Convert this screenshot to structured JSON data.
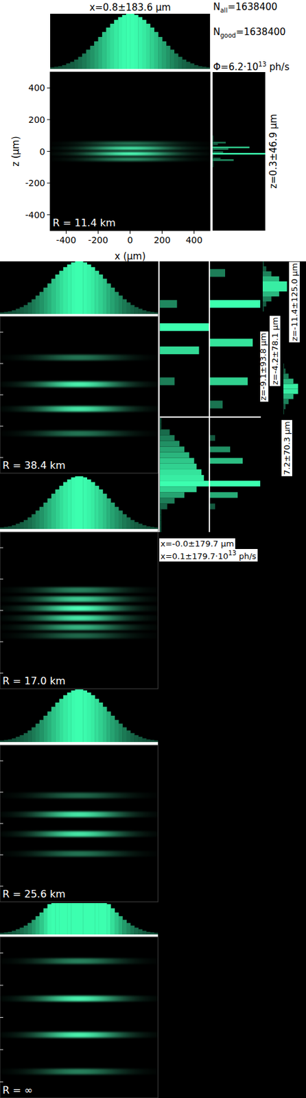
{
  "chart_data": [
    {
      "type": "image",
      "title": "x=0.8±183.6 µm",
      "annotation": "R = 11.4 km",
      "x_label": "x (µm)",
      "y_label": "z (µm)",
      "xlim": [
        -500,
        500
      ],
      "ylim": [
        -500,
        500
      ],
      "xticks": [
        -400,
        -200,
        0,
        200,
        400
      ],
      "yticks": [
        -400,
        -200,
        0,
        200,
        400
      ],
      "x_hist": {
        "bins": [
          -500,
          -475,
          -450,
          -425,
          -400,
          -375,
          -350,
          -325,
          -300,
          -275,
          -250,
          -225,
          -200,
          -175,
          -150,
          -125,
          -100,
          -75,
          -50,
          -25,
          0,
          25,
          50,
          75,
          100,
          125,
          150,
          175,
          200,
          225,
          250,
          275,
          300,
          325,
          350,
          375,
          400,
          425,
          450,
          475,
          500
        ],
        "counts": [
          3,
          4,
          5,
          7,
          10,
          13,
          17,
          22,
          28,
          35,
          42,
          50,
          58,
          67,
          75,
          82,
          89,
          94,
          98,
          100,
          100,
          98,
          94,
          89,
          82,
          75,
          67,
          58,
          50,
          42,
          35,
          28,
          22,
          17,
          13,
          10,
          7,
          5,
          4,
          3
        ],
        "ylim": [
          0,
          100
        ]
      },
      "z_hist": {
        "title": "z=0.3±46.9 µm",
        "bins": [
          -100,
          -90,
          -80,
          -70,
          -60,
          -50,
          -40,
          -30,
          -20,
          -10,
          0,
          10,
          20,
          30,
          40,
          50,
          60,
          70,
          80,
          90,
          100
        ],
        "counts": [
          2,
          2,
          2,
          2,
          40,
          15,
          2,
          2,
          100,
          20,
          2,
          30,
          70,
          2,
          10,
          25,
          2,
          2,
          2,
          2
        ],
        "xlim": [
          0,
          100
        ]
      },
      "fringes": {
        "z": [
          50,
          20,
          -15,
          -50
        ],
        "intensity": [
          0.45,
          0.9,
          1,
          0.55
        ]
      },
      "stats": [
        {
          "text": "N",
          "subscript": "all",
          "value": "=1638400"
        },
        {
          "text": "N",
          "subscript": "good",
          "value": "=1638400"
        },
        {
          "text": "Φ=6.2·10",
          "superscript": "13",
          "value": " ph/s"
        }
      ]
    },
    {
      "type": "image",
      "annotation": "R = 38.4 km",
      "xlim": [
        -500,
        500
      ],
      "ylim": [
        -500,
        500
      ],
      "yticks": [
        -400,
        -200,
        0,
        200,
        400
      ],
      "tick_labels": false,
      "x_hist": {
        "bins": [
          -500,
          -475,
          -450,
          -425,
          -400,
          -375,
          -350,
          -325,
          -300,
          -275,
          -250,
          -225,
          -200,
          -175,
          -150,
          -125,
          -100,
          -75,
          -50,
          -25,
          0,
          25,
          50,
          75,
          100,
          125,
          150,
          175,
          200,
          225,
          250,
          275,
          300,
          325,
          350,
          375,
          400,
          425,
          450,
          475,
          500
        ],
        "counts": [
          3,
          4,
          5,
          7,
          10,
          13,
          17,
          22,
          28,
          35,
          42,
          50,
          58,
          67,
          75,
          82,
          89,
          94,
          98,
          100,
          100,
          98,
          94,
          89,
          82,
          75,
          67,
          58,
          50,
          42,
          35,
          28,
          22,
          17,
          13,
          10,
          7,
          5,
          4,
          3
        ],
        "ylim": [
          0,
          100
        ]
      },
      "fringes": {
        "z": [
          238,
          67,
          -90,
          -247
        ],
        "intensity": [
          0.45,
          0.95,
          0.9,
          0.45
        ]
      }
    },
    {
      "type": "image",
      "annotation": "R = 17.0 km",
      "xlim": [
        -500,
        500
      ],
      "ylim": [
        -500,
        500
      ],
      "yticks": [
        -400,
        -200,
        0,
        200,
        400
      ],
      "tick_labels": false,
      "x_hist": {
        "bins": [
          -500,
          -475,
          -450,
          -425,
          -400,
          -375,
          -350,
          -325,
          -300,
          -275,
          -250,
          -225,
          -200,
          -175,
          -150,
          -125,
          -100,
          -75,
          -50,
          -25,
          0,
          25,
          50,
          75,
          100,
          125,
          150,
          175,
          200,
          225,
          250,
          275,
          300,
          325,
          350,
          375,
          400,
          425,
          450,
          475,
          500
        ],
        "counts": [
          3,
          4,
          5,
          7,
          10,
          13,
          17,
          22,
          28,
          35,
          42,
          50,
          58,
          67,
          75,
          82,
          89,
          94,
          98,
          100,
          100,
          98,
          94,
          89,
          82,
          75,
          67,
          58,
          50,
          42,
          35,
          28,
          22,
          17,
          13,
          10,
          7,
          5,
          4,
          3
        ],
        "ylim": [
          0,
          100
        ]
      },
      "fringes": {
        "z": [
          130,
          72,
          13,
          -49,
          -108,
          -161
        ],
        "intensity": [
          0.5,
          0.8,
          1,
          0.9,
          0.7,
          0.4
        ]
      }
    },
    {
      "type": "image",
      "annotation": "R = 25.6 km",
      "xlim": [
        -500,
        500
      ],
      "ylim": [
        -500,
        500
      ],
      "yticks": [
        -400,
        -200,
        0,
        200,
        400
      ],
      "tick_labels": false,
      "x_hist": {
        "bins": [
          -500,
          -475,
          -450,
          -425,
          -400,
          -375,
          -350,
          -325,
          -300,
          -275,
          -250,
          -225,
          -200,
          -175,
          -150,
          -125,
          -100,
          -75,
          -50,
          -25,
          0,
          25,
          50,
          75,
          100,
          125,
          150,
          175,
          200,
          225,
          250,
          275,
          300,
          325,
          350,
          375,
          400,
          425,
          450,
          475,
          500
        ],
        "counts": [
          3,
          4,
          5,
          7,
          10,
          13,
          17,
          22,
          28,
          35,
          42,
          50,
          58,
          67,
          75,
          82,
          89,
          94,
          98,
          100,
          100,
          98,
          94,
          89,
          82,
          75,
          67,
          58,
          50,
          42,
          35,
          28,
          22,
          17,
          13,
          10,
          7,
          5,
          4,
          3
        ],
        "ylim": [
          0,
          100
        ]
      },
      "fringes": {
        "z": [
          179,
          58,
          -67,
          -193
        ],
        "intensity": [
          0.4,
          0.9,
          0.9,
          0.45
        ]
      }
    },
    {
      "type": "image",
      "annotation": "R = ∞",
      "xlim": [
        -500,
        500
      ],
      "ylim": [
        -500,
        500
      ],
      "yticks": [
        -400,
        -200,
        0,
        200,
        400
      ],
      "tick_labels": false,
      "x_hist": {
        "bins": [
          -500,
          -475,
          -450,
          -425,
          -400,
          -375,
          -350,
          -325,
          -300,
          -275,
          -250,
          -225,
          -200,
          -175,
          -150,
          -125,
          -100,
          -75,
          -50,
          -25,
          0,
          25,
          50,
          75,
          100,
          125,
          150,
          175,
          200,
          225,
          250,
          275,
          300,
          325,
          350,
          375,
          400,
          425,
          450,
          475,
          500
        ],
        "counts": [
          3,
          4,
          5,
          7,
          10,
          13,
          17,
          22,
          28,
          35,
          42,
          50,
          58,
          60,
          60,
          60,
          60,
          60,
          60,
          60,
          60,
          60,
          60,
          60,
          60,
          60,
          60,
          58,
          50,
          42,
          35,
          28,
          22,
          17,
          13,
          10,
          7,
          5,
          4,
          3
        ],
        "ylim": [
          0,
          60
        ]
      },
      "fringes": {
        "z": [
          350,
          117,
          -108,
          -336
        ],
        "intensity": [
          0.5,
          0.95,
          0.95,
          0.5
        ]
      }
    },
    {
      "type": "histogram",
      "orientation": "horizontal",
      "title": "z=-11.4±125.0 µm",
      "bins": [
        -500,
        -400,
        -300,
        -200,
        -100,
        0,
        100,
        200,
        300,
        400,
        500
      ],
      "counts": [
        4,
        13,
        32,
        61,
        90,
        90,
        61,
        32,
        13,
        4
      ],
      "ylim": [
        -500,
        500
      ],
      "xlim": [
        0,
        100
      ]
    },
    {
      "type": "histogram",
      "orientation": "horizontal",
      "title": "z=-9.1±93.8 µm",
      "bins": [
        -500,
        -450,
        -400,
        -350,
        -300,
        -250,
        -200,
        -150,
        -100,
        -50,
        0,
        50,
        100,
        150,
        200,
        250,
        300,
        350,
        400,
        450,
        500
      ],
      "counts": [
        0,
        0,
        0,
        0,
        30,
        0,
        0,
        0,
        80,
        0,
        0,
        100,
        0,
        0,
        35,
        0,
        0,
        0,
        0,
        0
      ],
      "ylim": [
        -500,
        500
      ],
      "xlim": [
        0,
        100
      ]
    },
    {
      "type": "histogram",
      "orientation": "horizontal",
      "title": "z=-4.2±78.1 µm",
      "bins": [
        -500,
        -450,
        -400,
        -350,
        -300,
        -250,
        -200,
        -150,
        -100,
        -50,
        0,
        50,
        100,
        150,
        200,
        250,
        300,
        350,
        400,
        450,
        500
      ],
      "counts": [
        0,
        25,
        0,
        0,
        75,
        0,
        0,
        0,
        0,
        85,
        0,
        0,
        0,
        0,
        100,
        0,
        0,
        0,
        30,
        0
      ],
      "ylim": [
        -500,
        500
      ],
      "xlim": [
        0,
        100
      ]
    },
    {
      "type": "histogram",
      "orientation": "horizontal",
      "title": "x=-0.0±179.7 µm",
      "bins": [
        -500,
        -450,
        -400,
        -350,
        -300,
        -250,
        -200,
        -150,
        -100,
        -50,
        0,
        50,
        100,
        150,
        200,
        250,
        300,
        350,
        400,
        450,
        500
      ],
      "counts": [
        3,
        3,
        3,
        3,
        15,
        30,
        50,
        75,
        100,
        90,
        85,
        75,
        70,
        60,
        50,
        40,
        30,
        20,
        3,
        3
      ],
      "ylim": [
        -500,
        500
      ],
      "xlim": [
        0,
        100
      ]
    },
    {
      "type": "histogram",
      "orientation": "horizontal",
      "title": "7.2±70.3 µm",
      "bins": [
        -500,
        -450,
        -400,
        -350,
        -300,
        -250,
        -200,
        -150,
        -100,
        -50,
        0,
        50,
        100,
        150,
        200,
        250,
        300,
        350,
        400,
        450,
        500
      ],
      "counts": [
        0,
        0,
        0,
        0,
        10,
        0,
        55,
        0,
        100,
        0,
        0,
        0,
        65,
        0,
        40,
        0,
        10,
        0,
        0,
        0
      ],
      "ylim": [
        -500,
        500
      ],
      "xlim": [
        0,
        100
      ]
    },
    {
      "type": "histogram",
      "orientation": "horizontal",
      "title": {
        "text": "x=0.1±179.7·10",
        "superscript": "13",
        "value": " ph/s"
      },
      "bins": [
        -500,
        -400,
        -300,
        -200,
        -100,
        0,
        100,
        200,
        300,
        400,
        500
      ],
      "counts": [
        4,
        13,
        32,
        61,
        90,
        90,
        61,
        32,
        13,
        4
      ],
      "ylim": [
        -500,
        500
      ],
      "xlim": [
        0,
        100
      ]
    }
  ]
}
